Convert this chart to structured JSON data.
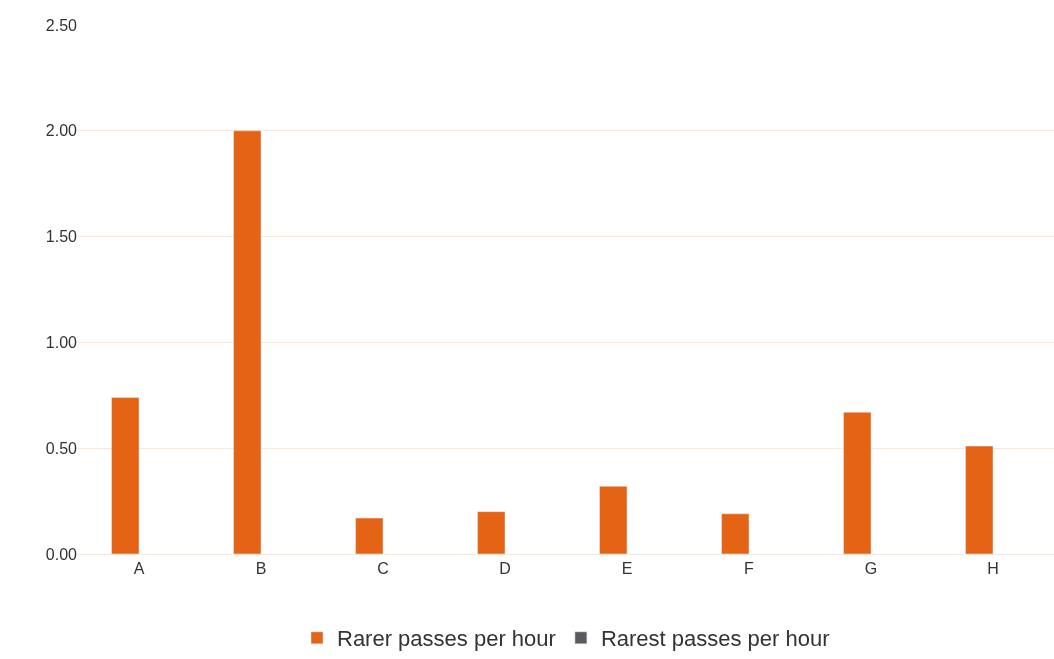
{
  "chart_data": {
    "type": "bar",
    "categories": [
      "A",
      "B",
      "C",
      "D",
      "E",
      "F",
      "G",
      "H"
    ],
    "series": [
      {
        "name": "Rarer passes per hour",
        "color": "#e46315",
        "values": [
          0.74,
          2.0,
          0.17,
          0.2,
          0.32,
          0.19,
          0.67,
          0.51
        ]
      },
      {
        "name": "Rarest passes per hour",
        "color": "#5a5a5f",
        "values": [
          null,
          null,
          null,
          null,
          null,
          null,
          null,
          null
        ]
      }
    ],
    "ylim": [
      0,
      2.5
    ],
    "yticks": [
      {
        "value": 0,
        "label": "0.00"
      },
      {
        "value": 0.5,
        "label": "0.50"
      },
      {
        "value": 1,
        "label": "1.00"
      },
      {
        "value": 1.5,
        "label": "1.50"
      },
      {
        "value": 2,
        "label": "2.00"
      },
      {
        "value": 2.5,
        "label": "2.50"
      }
    ],
    "grid": "y",
    "legend": "bottom"
  }
}
